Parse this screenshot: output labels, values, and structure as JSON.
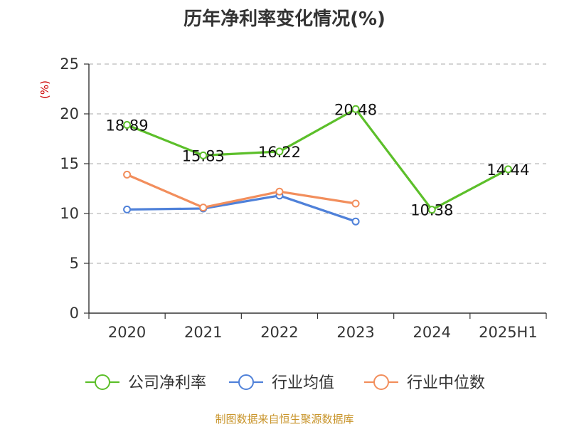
{
  "chart_data": {
    "type": "line",
    "title": "历年净利率变化情况(%)",
    "ylabel": "(%)",
    "xlabel": "",
    "categories": [
      "2020",
      "2021",
      "2022",
      "2023",
      "2024",
      "2025H1"
    ],
    "ylim": [
      0,
      25
    ],
    "yticks": [
      0,
      5,
      10,
      15,
      20,
      25
    ],
    "grid": true,
    "legend_position": "bottom",
    "series": [
      {
        "name": "公司净利率",
        "color": "#5cbf2a",
        "values": [
          18.89,
          15.83,
          16.22,
          20.48,
          10.38,
          14.44
        ],
        "show_labels": true
      },
      {
        "name": "行业均值",
        "color": "#4f81d9",
        "values": [
          10.4,
          10.5,
          11.8,
          9.2,
          null,
          null
        ],
        "show_labels": false
      },
      {
        "name": "行业中位数",
        "color": "#f28e5c",
        "values": [
          13.9,
          10.6,
          12.2,
          11.0,
          null,
          null
        ],
        "show_labels": false
      }
    ]
  },
  "footer": {
    "source": "制图数据来自恒生聚源数据库"
  }
}
